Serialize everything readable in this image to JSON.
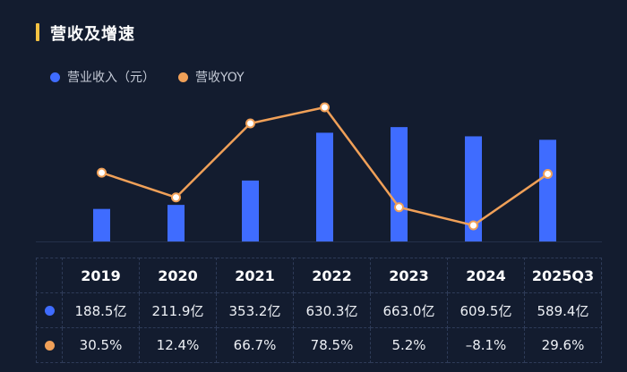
{
  "header": {
    "title": "营收及增速"
  },
  "legend": {
    "revenue_label": "营业收入（元）",
    "yoy_label": "营收YOY"
  },
  "colors": {
    "bar": "#3f6cff",
    "line": "#f0a058",
    "accent": "#f5c242"
  },
  "chart_data": {
    "type": "bar",
    "title": "营收及增速",
    "categories": [
      "2019",
      "2020",
      "2021",
      "2022",
      "2023",
      "2024",
      "2025Q3"
    ],
    "series": [
      {
        "name": "营业收入（元）",
        "type": "bar",
        "unit": "亿",
        "values": [
          188.5,
          211.9,
          353.2,
          630.3,
          663.0,
          609.5,
          589.4
        ]
      },
      {
        "name": "营收YOY",
        "type": "line",
        "unit": "%",
        "values": [
          30.5,
          12.4,
          66.7,
          78.5,
          5.2,
          -8.1,
          29.6
        ]
      }
    ]
  },
  "table": {
    "years": [
      "2019",
      "2020",
      "2021",
      "2022",
      "2023",
      "2024",
      "2025Q3"
    ],
    "revenue": [
      "188.5亿",
      "211.9亿",
      "353.2亿",
      "630.3亿",
      "663.0亿",
      "609.5亿",
      "589.4亿"
    ],
    "yoy": [
      "30.5%",
      "12.4%",
      "66.7%",
      "78.5%",
      "5.2%",
      "–8.1%",
      "29.6%"
    ]
  }
}
